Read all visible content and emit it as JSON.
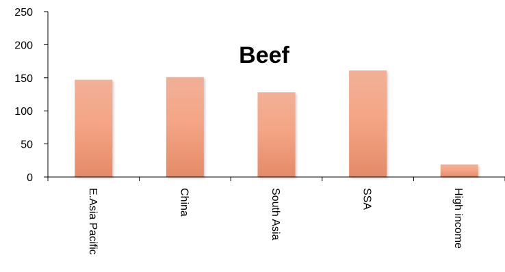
{
  "chart_data": {
    "type": "bar",
    "title": "Beef",
    "xlabel": "",
    "ylabel": "",
    "categories": [
      "E.Asia Pacific",
      "China",
      "South Asia",
      "SSA",
      "High income"
    ],
    "values": [
      147,
      151,
      128,
      161,
      19
    ],
    "ylim": [
      0,
      250
    ],
    "yticks": [
      0,
      50,
      100,
      150,
      200,
      250
    ],
    "grid": false,
    "legend": "none",
    "colors": {
      "bar_top": "#f1b097",
      "bar_mid": "#f4a585",
      "bar_bottom": "#e48a68",
      "axis": "#000000"
    }
  }
}
